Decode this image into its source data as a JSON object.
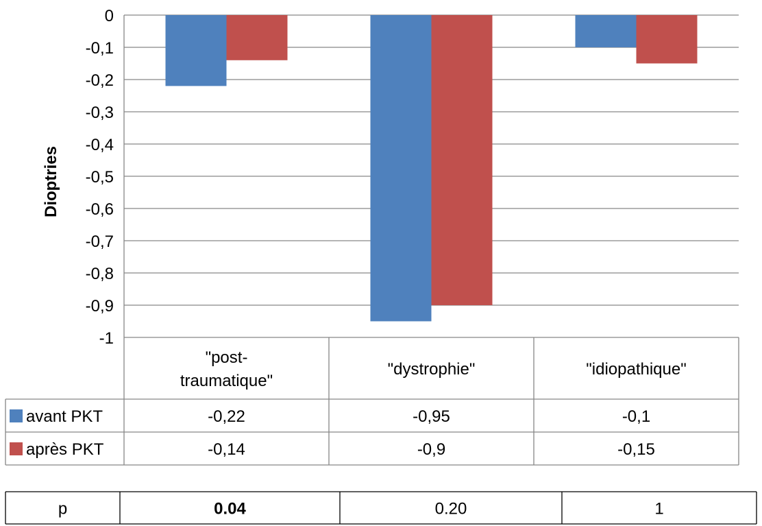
{
  "chart_data": {
    "type": "bar",
    "ylabel": "Dioptries",
    "ylim": [
      -1,
      0
    ],
    "yticks": [
      "0",
      "-0,1",
      "-0,2",
      "-0,3",
      "-0,4",
      "-0,5",
      "-0,6",
      "-0,7",
      "-0,8",
      "-0,9",
      "-1"
    ],
    "ytick_values": [
      0,
      -0.1,
      -0.2,
      -0.3,
      -0.4,
      -0.5,
      -0.6,
      -0.7,
      -0.8,
      -0.9,
      -1
    ],
    "grid": true,
    "categories": [
      [
        "\"post-",
        "traumatique\""
      ],
      [
        "\"dystrophie\""
      ],
      [
        "\"idiopathique\""
      ]
    ],
    "series": [
      {
        "name": "avant PKT",
        "color": "#4F81BD",
        "values": [
          -0.22,
          -0.95,
          -0.1
        ],
        "labels": [
          "-0,22",
          "-0,95",
          "-0,1"
        ]
      },
      {
        "name": "après PKT",
        "color": "#C0504D",
        "values": [
          -0.14,
          -0.9,
          -0.15
        ],
        "labels": [
          "-0,14",
          "-0,9",
          "-0,15"
        ]
      }
    ],
    "legend": "data-table"
  },
  "p_table": {
    "label": "p",
    "values": [
      "0.04",
      "0.20",
      "1"
    ],
    "bold": [
      true,
      false,
      false
    ]
  }
}
